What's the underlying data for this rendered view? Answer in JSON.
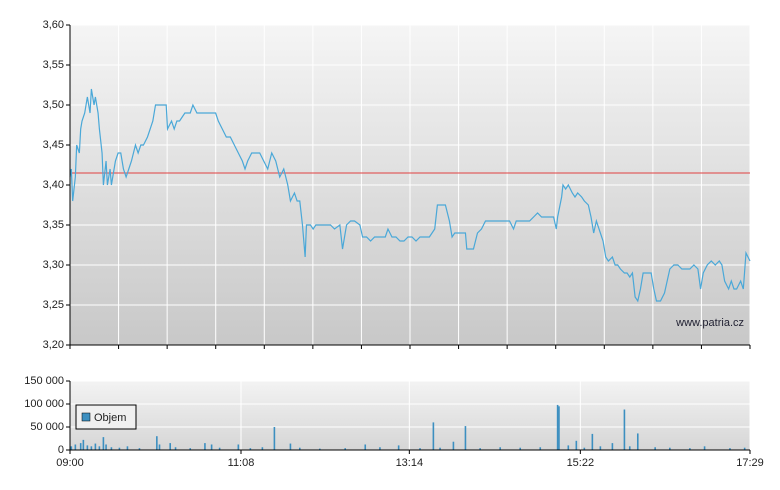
{
  "chart_data": [
    {
      "type": "line",
      "watermark": "www.patria.cz",
      "xlim": [
        540,
        1049
      ],
      "ylim": [
        3.2,
        3.6
      ],
      "yticks": [
        {
          "value": 3.2,
          "label": "3,20"
        },
        {
          "value": 3.25,
          "label": "3,25"
        },
        {
          "value": 3.3,
          "label": "3,30"
        },
        {
          "value": 3.35,
          "label": "3,35"
        },
        {
          "value": 3.4,
          "label": "3,40"
        },
        {
          "value": 3.45,
          "label": "3,45"
        },
        {
          "value": 3.5,
          "label": "3,50"
        },
        {
          "value": 3.55,
          "label": "3,55"
        },
        {
          "value": 3.6,
          "label": "3,60"
        }
      ],
      "grid": true,
      "reference_line": {
        "value": 3.415,
        "color": "#e04040"
      },
      "x": [
        540,
        541,
        542,
        544,
        545,
        547,
        548,
        549,
        551,
        553,
        555,
        556,
        558,
        559,
        561,
        562,
        564,
        565,
        567,
        568,
        570,
        571,
        574,
        576,
        578,
        580,
        582,
        584,
        586,
        589,
        591,
        593,
        595,
        598,
        600,
        602,
        604,
        607,
        610,
        612,
        613,
        616,
        618,
        620,
        622,
        626,
        630,
        632,
        635,
        637,
        641,
        645,
        649,
        651,
        654,
        657,
        660,
        663,
        666,
        669,
        671,
        673,
        676,
        679,
        682,
        685,
        688,
        691,
        694,
        697,
        700,
        703,
        705,
        708,
        710,
        712,
        714,
        716,
        717,
        720,
        722,
        724,
        727,
        731,
        735,
        738,
        742,
        744,
        747,
        750,
        753,
        757,
        759,
        762,
        765,
        768,
        772,
        776,
        778,
        781,
        784,
        787,
        790,
        793,
        796,
        799,
        802,
        806,
        809,
        813,
        815,
        818,
        821,
        824,
        826,
        828,
        832,
        836,
        837,
        839,
        842,
        845,
        848,
        851,
        854,
        858,
        862,
        866,
        869,
        872,
        874,
        877,
        881,
        884,
        887,
        890,
        893,
        895,
        899,
        902,
        904,
        905,
        908,
        909,
        911,
        913,
        916,
        918,
        920,
        923,
        925,
        928,
        930,
        932,
        934,
        937,
        939,
        941,
        943,
        946,
        948,
        950,
        952,
        955,
        957,
        959,
        961,
        963,
        965,
        967,
        969,
        972,
        975,
        977,
        979,
        982,
        985,
        987,
        989,
        992,
        995,
        998,
        1001,
        1004,
        1007,
        1010,
        1012,
        1014,
        1017,
        1020,
        1023,
        1026,
        1028,
        1030,
        1033,
        1035,
        1037,
        1039,
        1042,
        1044,
        1046,
        1049
      ],
      "series": [
        {
          "color": "#4aa8d8",
          "values": [
            3.41,
            3.42,
            3.38,
            3.41,
            3.45,
            3.44,
            3.47,
            3.48,
            3.49,
            3.51,
            3.49,
            3.52,
            3.5,
            3.51,
            3.49,
            3.47,
            3.44,
            3.4,
            3.43,
            3.4,
            3.42,
            3.4,
            3.43,
            3.44,
            3.44,
            3.42,
            3.41,
            3.42,
            3.43,
            3.45,
            3.44,
            3.45,
            3.45,
            3.46,
            3.47,
            3.48,
            3.5,
            3.5,
            3.5,
            3.5,
            3.47,
            3.48,
            3.47,
            3.48,
            3.48,
            3.49,
            3.49,
            3.5,
            3.49,
            3.49,
            3.49,
            3.49,
            3.49,
            3.48,
            3.47,
            3.46,
            3.46,
            3.45,
            3.44,
            3.43,
            3.42,
            3.43,
            3.44,
            3.44,
            3.44,
            3.43,
            3.42,
            3.44,
            3.43,
            3.41,
            3.42,
            3.4,
            3.38,
            3.39,
            3.38,
            3.38,
            3.35,
            3.31,
            3.35,
            3.35,
            3.345,
            3.35,
            3.35,
            3.35,
            3.35,
            3.345,
            3.35,
            3.32,
            3.35,
            3.355,
            3.355,
            3.35,
            3.335,
            3.335,
            3.33,
            3.335,
            3.335,
            3.335,
            3.345,
            3.335,
            3.335,
            3.33,
            3.33,
            3.335,
            3.335,
            3.33,
            3.335,
            3.335,
            3.335,
            3.345,
            3.375,
            3.375,
            3.375,
            3.355,
            3.335,
            3.34,
            3.34,
            3.34,
            3.32,
            3.32,
            3.32,
            3.34,
            3.345,
            3.355,
            3.355,
            3.355,
            3.355,
            3.355,
            3.355,
            3.345,
            3.355,
            3.355,
            3.355,
            3.355,
            3.36,
            3.365,
            3.36,
            3.36,
            3.36,
            3.36,
            3.345,
            3.36,
            3.385,
            3.4,
            3.395,
            3.4,
            3.39,
            3.385,
            3.39,
            3.385,
            3.38,
            3.375,
            3.36,
            3.34,
            3.355,
            3.34,
            3.33,
            3.31,
            3.305,
            3.31,
            3.3,
            3.3,
            3.295,
            3.29,
            3.29,
            3.285,
            3.29,
            3.26,
            3.255,
            3.27,
            3.29,
            3.29,
            3.29,
            3.27,
            3.255,
            3.255,
            3.265,
            3.28,
            3.295,
            3.3,
            3.3,
            3.295,
            3.295,
            3.295,
            3.3,
            3.295,
            3.27,
            3.29,
            3.3,
            3.305,
            3.3,
            3.305,
            3.3,
            3.28,
            3.27,
            3.28,
            3.27,
            3.27,
            3.28,
            3.27,
            3.315,
            3.305
          ]
        }
      ]
    },
    {
      "type": "bar",
      "xlim": [
        540,
        1049
      ],
      "ylim": [
        0,
        150000
      ],
      "yticks": [
        {
          "value": 0,
          "label": "0"
        },
        {
          "value": 50000,
          "label": "50 000"
        },
        {
          "value": 100000,
          "label": "100 000"
        },
        {
          "value": 150000,
          "label": "150 000"
        }
      ],
      "xticks": [
        {
          "value": 540,
          "label": "09:00"
        },
        {
          "value": 668,
          "label": "11:08"
        },
        {
          "value": 794,
          "label": "13:14"
        },
        {
          "value": 922,
          "label": "15:22"
        },
        {
          "value": 1049,
          "label": "17:29"
        }
      ],
      "grid": true,
      "legend": "top-left",
      "x": [
        541,
        544,
        548,
        550,
        553,
        556,
        559,
        562,
        565,
        567,
        571,
        577,
        583,
        592,
        605,
        607,
        615,
        619,
        630,
        641,
        646,
        652,
        666,
        675,
        684,
        693,
        705,
        712,
        727,
        746,
        761,
        772,
        786,
        802,
        812,
        817,
        827,
        836,
        847,
        862,
        877,
        892,
        905,
        906,
        913,
        919,
        925,
        931,
        937,
        946,
        955,
        959,
        965,
        978,
        989,
        1004,
        1015,
        1034,
        1045
      ],
      "series": [
        {
          "name": "Objem",
          "color": "#3c8fc0",
          "values": [
            8000,
            12000,
            15000,
            22000,
            10000,
            8000,
            14000,
            8000,
            28000,
            12000,
            6000,
            5000,
            8000,
            4000,
            30000,
            12000,
            15000,
            6000,
            4000,
            15000,
            12000,
            5000,
            12000,
            4000,
            6000,
            50000,
            14000,
            5000,
            3000,
            4000,
            12000,
            6000,
            10000,
            4000,
            60000,
            5000,
            18000,
            52000,
            4000,
            6000,
            5000,
            6000,
            98000,
            95000,
            10000,
            20000,
            5000,
            35000,
            8000,
            15000,
            88000,
            8000,
            36000,
            6000,
            5000,
            4000,
            8000,
            4000,
            5000
          ]
        }
      ]
    }
  ]
}
